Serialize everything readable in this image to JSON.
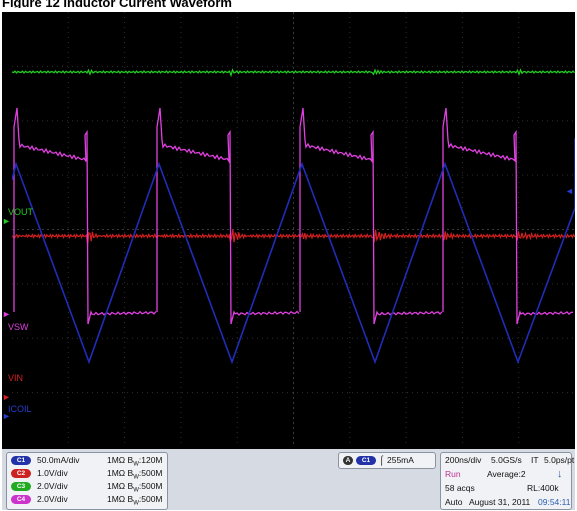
{
  "title": "Figure 12 Inductor Current Waveform",
  "colors": {
    "ch1": "#1f2db8",
    "ch2": "#d42020",
    "ch3": "#22cc22",
    "ch4": "#e040e0",
    "background": "#000000"
  },
  "traces": {
    "labels": {
      "vout": "VOUT",
      "vsw": "VSW",
      "vin": "VIN",
      "icoil": "ICOIL"
    }
  },
  "channels": [
    {
      "badge": "C1",
      "scale": "50.0mA/div",
      "imp": "1MΩ",
      "bw": "B",
      "bw_sub": "W",
      "bw_val": ":120M",
      "color": "#2233aa"
    },
    {
      "badge": "C2",
      "scale": "1.0V/div",
      "imp": "1MΩ",
      "bw": "B",
      "bw_sub": "W",
      "bw_val": ":500M",
      "color": "#cc2222"
    },
    {
      "badge": "C3",
      "scale": "2.0V/div",
      "imp": "1MΩ",
      "bw": "B",
      "bw_sub": "W",
      "bw_val": ":500M",
      "color": "#22aa22"
    },
    {
      "badge": "C4",
      "scale": "2.0V/div",
      "imp": "1MΩ",
      "bw": "B",
      "bw_sub": "W",
      "bw_val": ":500M",
      "color": "#cc33cc"
    }
  ],
  "trigger": {
    "mode": "A",
    "channel": "C1",
    "level": "255mA"
  },
  "timebase": {
    "horizontal": "200ns/div",
    "sample_rate": "5.0GS/s",
    "it_label": "IT",
    "it_value": "5.0ps/pt",
    "state": "Run",
    "average": "Average:2",
    "acqs": "58 acqs",
    "record": "RL:400k",
    "mode": "Auto",
    "date": "August 31, 2011",
    "time": "09:54:11"
  }
}
